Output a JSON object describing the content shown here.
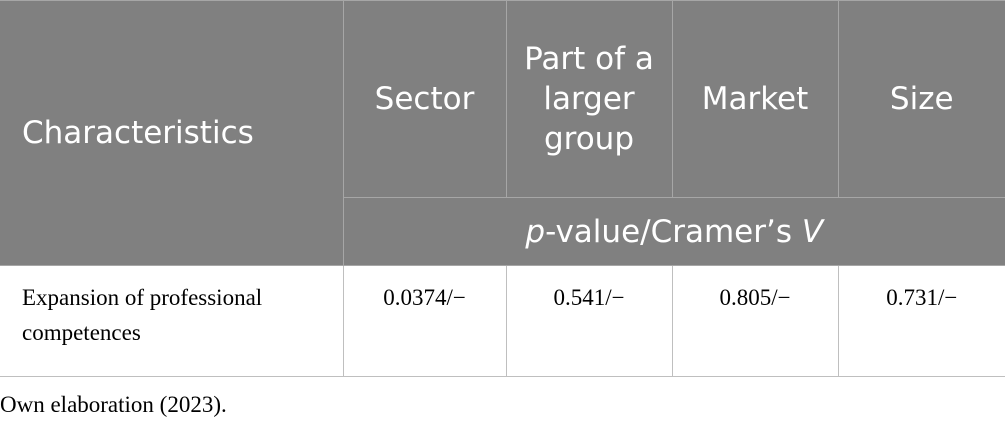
{
  "table": {
    "header": [
      "Characteristics",
      "Sector",
      "Part of a larger group",
      "Market",
      "Size"
    ],
    "subheader": [
      "p",
      "-value/Cramer’s ",
      "V"
    ],
    "rows": [
      [
        "Expansion of professional competences",
        "0.0374/−",
        "0.541/−",
        "0.805/−",
        "0.731/−"
      ]
    ]
  },
  "footnote": "Own elaboration (2023)."
}
